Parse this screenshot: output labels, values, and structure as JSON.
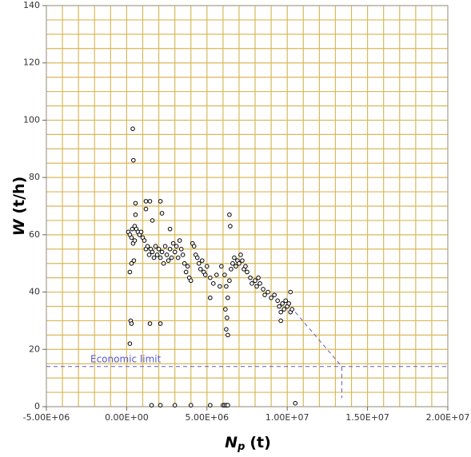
{
  "chart_data": {
    "type": "scatter",
    "x_label": {
      "main": "N",
      "sub": "p",
      "unit": "(t)"
    },
    "y_label": {
      "main": "W",
      "unit": "(t/h)"
    },
    "xlim": [
      -5000000,
      20000000
    ],
    "ylim": [
      0,
      140
    ],
    "xticks": [
      {
        "value": -5000000,
        "label": "-5.00E+06"
      },
      {
        "value": 0,
        "label": "0.00E+00"
      },
      {
        "value": 5000000,
        "label": "5.00E+06"
      },
      {
        "value": 10000000,
        "label": "1.00E+07"
      },
      {
        "value": 15000000,
        "label": "1.50E+07"
      },
      {
        "value": 20000000,
        "label": "2.00E+07"
      }
    ],
    "yticks": [
      0,
      20,
      40,
      60,
      80,
      100,
      120,
      140
    ],
    "grid": true,
    "x_grid_step": 1000000,
    "y_grid_step": 5,
    "grid_color": "#d9b85a",
    "marker_color": "#000000",
    "economic_limit": {
      "label": "Economic limit",
      "value": 14,
      "color": "#5a5acc"
    },
    "trend_line": {
      "x": [
        10500000,
        13400000,
        13400000
      ],
      "y": [
        33,
        14,
        3
      ],
      "color": "#5a5acc"
    },
    "series": [
      {
        "x": [
          100000.0,
          200000.0,
          300000.0,
          350000.0,
          500000.0,
          600000.0,
          700000.0,
          800000.0,
          900000.0,
          1000000.0,
          400000.0,
          500000.0,
          450000.0,
          300000.0,
          200000.0,
          380000.0,
          420000.0,
          250000.0,
          300000.0,
          200000.0,
          550000.0,
          550000.0,
          1200000.0,
          1450000.0,
          1200000.0,
          1600000.0,
          2100000.0,
          2200000.0,
          2700000.0,
          1450000.0,
          2100000.0,
          1100000.0,
          1200000.0,
          1300000.0,
          1400000.0,
          1500000.0,
          1600000.0,
          1700000.0,
          1800000.0,
          1900000.0,
          2000000.0,
          2100000.0,
          2200000.0,
          2300000.0,
          2400000.0,
          2500000.0,
          2600000.0,
          2700000.0,
          2800000.0,
          2900000.0,
          3000000.0,
          3100000.0,
          3200000.0,
          3300000.0,
          3400000.0,
          3500000.0,
          3600000.0,
          3700000.0,
          3800000.0,
          3900000.0,
          4000000.0,
          4100000.0,
          4200000.0,
          4300000.0,
          4400000.0,
          4500000.0,
          4600000.0,
          4700000.0,
          4800000.0,
          4900000.0,
          5000000.0,
          5200000.0,
          5400000.0,
          5600000.0,
          5800000.0,
          5900000.0,
          5200000.0,
          6100000.0,
          6200000.0,
          6300000.0,
          6150000.0,
          6250000.0,
          6200000.0,
          6300000.0,
          6400000.0,
          6450000.0,
          6400000.0,
          6600000.0,
          6700000.0,
          6800000.0,
          6900000.0,
          7000000.0,
          7100000.0,
          7200000.0,
          7300000.0,
          7500000.0,
          7700000.0,
          7800000.0,
          8000000.0,
          8100000.0,
          8300000.0,
          8500000.0,
          8600000.0,
          8800000.0,
          9000000.0,
          9200000.0,
          9400000.0,
          9500000.0,
          9600000.0,
          9700000.0,
          9800000.0,
          9900000.0,
          10000000.0,
          10100000.0,
          10200000.0,
          9600000.0,
          10200000.0,
          10300000.0,
          8200000.0,
          7400000.0,
          6500000.0,
          1550000.0,
          2100000.0,
          3000000.0,
          4000000.0,
          5200000.0,
          6000000.0,
          6100000.0,
          6200000.0,
          6300000.0,
          10500000.0
        ],
        "y": [
          61,
          60,
          59,
          62,
          63,
          62,
          61,
          60,
          61,
          59,
          57,
          58,
          51,
          50,
          47,
          97,
          86,
          30,
          29,
          22,
          71,
          67,
          71.7,
          71.7,
          69,
          65,
          71.7,
          67.5,
          62,
          29,
          29,
          58,
          55,
          56,
          53,
          55,
          54,
          52,
          56,
          53,
          55,
          52,
          54,
          50,
          56,
          53,
          51,
          55,
          52,
          57,
          54,
          56,
          52,
          58,
          55,
          53,
          50,
          47,
          49,
          45,
          44,
          57,
          56,
          53,
          52,
          50,
          48,
          51,
          47,
          46,
          49,
          45,
          43,
          46,
          42,
          49,
          38,
          46,
          42,
          38,
          34,
          31,
          27,
          25,
          67,
          63,
          44,
          50,
          52,
          49,
          51,
          50,
          53,
          51,
          48,
          47,
          45,
          43,
          44,
          42,
          43,
          41,
          39,
          40,
          38,
          39,
          37,
          35,
          33,
          36,
          34,
          37,
          35,
          36,
          33,
          30,
          40,
          34,
          45,
          49,
          48,
          0.5,
          0.5,
          0.5,
          0.5,
          0.5,
          0.5,
          0.5,
          0.5,
          0.5,
          1.2
        ]
      }
    ]
  }
}
